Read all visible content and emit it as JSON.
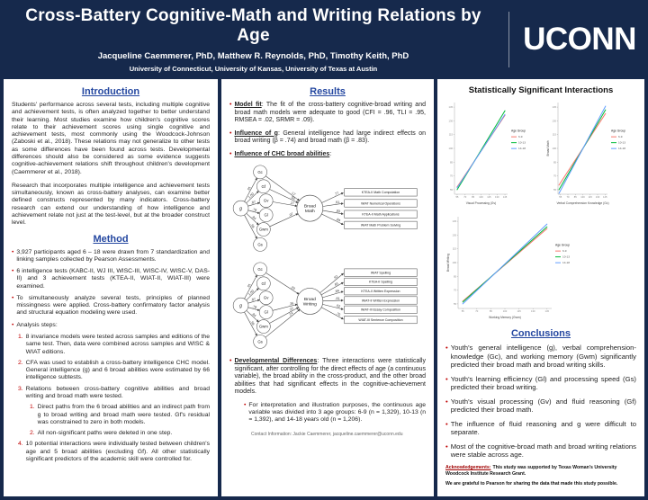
{
  "header": {
    "title": "Cross-Battery Cognitive-Math and Writing Relations by Age",
    "authors": "Jacqueline Caemmerer, PhD, Matthew R. Reynolds, PhD, Timothy Keith, PhD",
    "affiliations": "University of Connecticut, University of Kansas, University of Texas at Austin",
    "logo_text": "UCONN"
  },
  "colors": {
    "background_navy": "#16294c",
    "heading_blue": "#2447a0",
    "accent_red": "#c00000",
    "age_6_9": "#f8766d",
    "age_10_13": "#00ba38",
    "age_14_18": "#619cff"
  },
  "introduction": {
    "heading": "Introduction",
    "paragraphs": [
      "Students' performance across several tests, including multiple cognitive and achievement tests, is often analyzed together to better understand their learning. Most studies examine how children's cognitive scores relate to their achievement scores using single cognitive and achievement tests, most commonly using the Woodcock-Johnson (Zaboski et al., 2018). These relations may not generalize to other tests as some differences have been found across tests. Developmental differences should also be considered as some evidence suggests cognitive-achievement relations shift throughout children's development (Caemmerer et al., 2018).",
      "Research that incorporates multiple intelligence and achievement tests simultaneously, known as cross-battery analyses, can examine better defined constructs represented by many indicators. Cross-battery research can extend our understanding of how intelligence and achievement relate not just at the test-level, but at the broader construct level."
    ]
  },
  "method": {
    "heading": "Method",
    "bullets": [
      "3,927 participants aged 6 – 18 were drawn from 7 standardization and linking samples collected by Pearson Assessments.",
      "6 intelligence tests (KABC-II, WJ III, WISC-III, WISC-IV, WISC-V, DAS-II) and 3 achievement tests (KTEA-II, WIAT-II, WIAT-III) were examined.",
      "To simultaneously analyze several tests, principles of planned missingness were applied. Cross-battery confirmatory factor analysis and structural equation modeling were used.",
      "Analysis steps:"
    ],
    "steps": [
      {
        "num": "1.",
        "text": "8 invariance models were tested across samples and editions of the same test. Then, data were combined across samples and WISC & WIAT editions."
      },
      {
        "num": "2.",
        "text": "CFA was used to establish a cross-battery intelligence CHC model. General intelligence (g) and 6 broad abilities were estimated by 66 intelligence subtests."
      },
      {
        "num": "3.",
        "text": "Relations between cross-battery cognitive abilities and broad writing and broad math were tested.",
        "substeps": [
          {
            "num": "1.",
            "text": "Direct paths from the 6 broad abilities and an indirect path from g to broad writing and broad math were tested. Gf's residual was constrained to zero in both models."
          },
          {
            "num": "2.",
            "text": "All non-significant paths were deleted in one step."
          }
        ]
      },
      {
        "num": "4.",
        "text": "10 potential interactions were individually tested between children's age and 5 broad abilities (excluding Gf). All other statistically significant predictors of the academic skill were controlled for."
      }
    ]
  },
  "results": {
    "heading": "Results",
    "bullets": [
      {
        "lead": "Model fit",
        "text": ": The fit of the cross-battery cognitive-broad writing and broad math models were adequate to good (CFI = .96, TLI = .95, RMSEA = .02, SRMR = .09)."
      },
      {
        "lead": "Influence of g",
        "text": ": General intelligence had large indirect effects on broad writing (β = .74) and broad math (β = .83)."
      },
      {
        "lead": "Influence of CHC broad abilities",
        "text": ":"
      }
    ],
    "developmental": {
      "lead": "Developmental Differences",
      "text": ": Three interactions were statistically significant, after controlling for the direct effects of age (a continuous variable), the broad ability in the cross-product, and the other broad abilities that had significant effects in the cognitive-achievement models.",
      "sub": "For interpretation and illustration purposes, the continuous age variable was divided into 3 age groups: 6-9 (n = 1,329), 10-13 (n = 1,392), and 14-18 years old (n = 1,206)."
    },
    "contact": "Contact Information: Jackie Caemmerer, jacqueline.caemmerer@uconn.edu"
  },
  "diagrams": [
    {
      "name": "cognitive-broad-math-model",
      "g_label": "g",
      "outcome": "Broad Math",
      "abilities": [
        {
          "label": "Gc",
          "g_load": ".91",
          "path": ".17"
        },
        {
          "label": "Gf",
          "g_load": "1.00",
          "path": ".50"
        },
        {
          "label": "Gv",
          "g_load": ".87",
          "path": ".27"
        },
        {
          "label": "Gl",
          "g_load": ".78",
          "path": null
        },
        {
          "label": "Gwm",
          "g_load": ".84",
          "path": ".07"
        },
        {
          "label": "Gs",
          "g_load": ".56",
          "path": null
        }
      ],
      "indicators": [
        {
          "label": "KTEA-II Math Computation",
          "loading": ".77"
        },
        {
          "label": "WIAT Numerical Operations",
          "loading": ".91"
        },
        {
          "label": "KTEA-II Math Applications",
          "loading": ".93"
        },
        {
          "label": "WIAT Math Problem Solving",
          "loading": ".84"
        }
      ]
    },
    {
      "name": "cognitive-broad-writing-model",
      "g_label": "g",
      "outcome": "Broad Writing",
      "abilities": [
        {
          "label": "Gc",
          "g_load": ".91",
          "path": ".29"
        },
        {
          "label": "Gf",
          "g_load": "1.00",
          "path": null
        },
        {
          "label": "Gv",
          "g_load": ".87",
          "path": null
        },
        {
          "label": "Gl",
          "g_load": ".78",
          "path": ".26"
        },
        {
          "label": "Gwm",
          "g_load": ".84",
          "path": ".22"
        },
        {
          "label": "Gs",
          "g_load": ".56",
          "path": ".24"
        }
      ],
      "indicators": [
        {
          "label": "WIAT Spelling",
          "loading": ".92"
        },
        {
          "label": "KTEA-II Spelling",
          "loading": ".81"
        },
        {
          "label": "KTEA-II Written Expression",
          "loading": ".84"
        },
        {
          "label": "WIAT-II Written Expression",
          "loading": ".81"
        },
        {
          "label": "WIAT-III Essay Composition",
          "loading": ".52"
        },
        {
          "label": "WIAT-III Sentence Composition",
          "loading": ".75"
        }
      ]
    }
  ],
  "interactions": {
    "title": "Statistically Significant Interactions",
    "legend_title": "Age Group",
    "legend_items": [
      "6-9",
      "10-13",
      "14-18"
    ]
  },
  "conclusions": {
    "heading": "Conclusions",
    "bullets": [
      "Youth's general intelligence (g), verbal comprehension-knowledge (Gc), and working memory (Gwm) significantly predicted their broad math and broad writing skills.",
      "Youth's learning efficiency (Gl) and processing speed (Gs) predicted their broad writing.",
      "Youth's visual processing (Gv) and fluid reasoning (Gf) predicted their broad math.",
      "The influence of fluid reasoning and g were difficult to separate.",
      "Most of the cognitive-broad math and broad writing relations were stable across age."
    ],
    "acknowledgements_label": "Acknowledgements:",
    "acknowledgements": "This study was supported by Texas Woman's University Woodcock Institute Research Grant.",
    "acknowledgements2": "We are grateful to Pearson for sharing the data that made this study possible."
  },
  "chart_data": [
    {
      "type": "line",
      "title": "",
      "xlabel": "Visual Processing (Gv)",
      "ylabel": "",
      "xlim": [
        50,
        150
      ],
      "ylim": [
        50,
        150
      ],
      "x_ticks": [
        55,
        70,
        85,
        100,
        115,
        130,
        145
      ],
      "y_ticks": [
        55,
        70,
        85,
        100,
        115,
        130,
        145
      ],
      "grid": false,
      "legend_title": "Age Group",
      "legend_position": "right",
      "x_range": [
        55,
        145
      ],
      "series": [
        {
          "name": "6-9",
          "color": "#f8766d",
          "y": [
            58,
            136
          ]
        },
        {
          "name": "10-13",
          "color": "#00ba38",
          "y": [
            55,
            141
          ]
        },
        {
          "name": "14-18",
          "color": "#619cff",
          "y": [
            57,
            137
          ]
        }
      ]
    },
    {
      "type": "line",
      "title": "",
      "xlabel": "Verbal Comprehension Knowledge (Gc)",
      "ylabel": "Broad Math",
      "xlim": [
        50,
        150
      ],
      "ylim": [
        50,
        150
      ],
      "x_ticks": [
        55,
        70,
        85,
        100,
        115,
        130,
        145
      ],
      "y_ticks": [
        55,
        70,
        85,
        100,
        115,
        130,
        145
      ],
      "grid": false,
      "legend_title": "Age Group",
      "legend_position": "right",
      "x_range": [
        52,
        146
      ],
      "series": [
        {
          "name": "6-9",
          "color": "#f8766d",
          "y": [
            60,
            138
          ]
        },
        {
          "name": "10-13",
          "color": "#00ba38",
          "y": [
            55,
            142
          ]
        },
        {
          "name": "14-18",
          "color": "#619cff",
          "y": [
            51,
            146
          ]
        }
      ]
    },
    {
      "type": "line",
      "title": "",
      "xlabel": "Working Memory (Gwm)",
      "ylabel": "Broad Writing",
      "xlim": [
        50,
        150
      ],
      "ylim": [
        50,
        150
      ],
      "x_ticks": [
        55,
        70,
        85,
        100,
        115,
        130,
        145
      ],
      "y_ticks": [
        55,
        70,
        85,
        100,
        115,
        130,
        145
      ],
      "grid": false,
      "legend_title": "Age Group",
      "legend_position": "right",
      "x_range": [
        55,
        145
      ],
      "series": [
        {
          "name": "6-9",
          "color": "#f8766d",
          "y": [
            58,
            137
          ]
        },
        {
          "name": "10-13",
          "color": "#00ba38",
          "y": [
            57,
            139
          ]
        },
        {
          "name": "14-18",
          "color": "#619cff",
          "y": [
            55,
            142
          ]
        }
      ]
    }
  ]
}
